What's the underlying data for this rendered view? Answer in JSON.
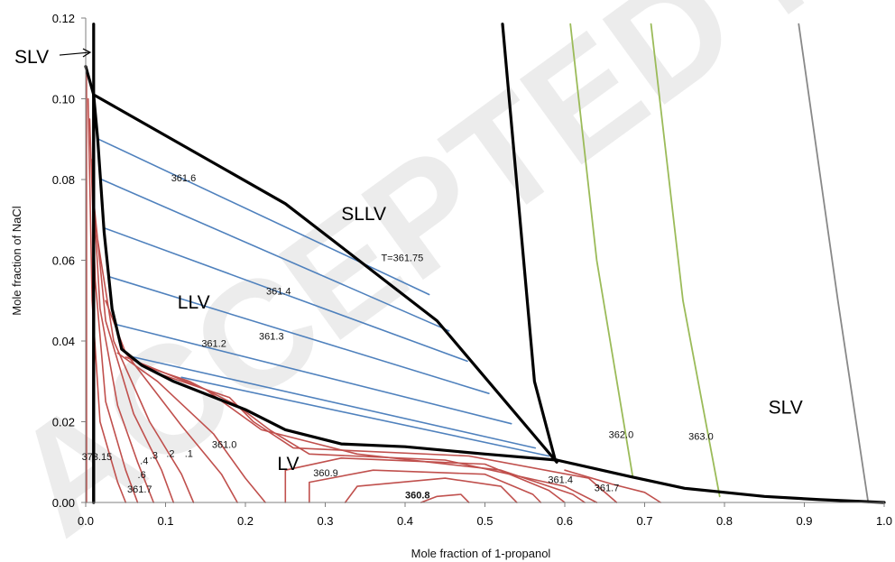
{
  "chart_data": {
    "type": "line",
    "title": "",
    "xlabel": "Mole fraction of 1-propanol",
    "ylabel": "Mole fraction of NaCl",
    "xlim": [
      0.0,
      1.0
    ],
    "ylim": [
      0.0,
      0.12
    ],
    "x_ticks": [
      "0.0",
      "0.1",
      "0.2",
      "0.3",
      "0.4",
      "0.5",
      "0.6",
      "0.7",
      "0.8",
      "0.9",
      "1.0"
    ],
    "y_ticks": [
      "0.00",
      "0.02",
      "0.04",
      "0.06",
      "0.08",
      "0.10",
      "0.12"
    ],
    "grid": false,
    "watermark": "ACCEPTED MANUSCRIPT",
    "colors": {
      "phase_boundary": "#000000",
      "lv_isotherm": "#c0504d",
      "llv_tieline": "#4f81bd",
      "slv_isotherm_green": "#9bbb59",
      "slv_isotherm_gray": "#888888"
    },
    "regions": [
      {
        "label": "SLV",
        "x": 0.855,
        "y": 0.022
      },
      {
        "label": "SLLV",
        "x": 0.32,
        "y": 0.07
      },
      {
        "label": "LLV",
        "x": 0.115,
        "y": 0.048
      },
      {
        "label": "LV",
        "x": 0.24,
        "y": 0.008
      }
    ],
    "slv_arrow_label": {
      "label": "SLV",
      "tip_x": 0.009,
      "tip_y": 0.1115
    },
    "isotherm_labels": [
      {
        "text": "373.15",
        "x": -0.005,
        "y": 0.0105,
        "style": "normal"
      },
      {
        "text": "361.7",
        "x": 0.052,
        "y": 0.0025,
        "style": "normal"
      },
      {
        "text": ".6",
        "x": 0.065,
        "y": 0.006,
        "style": "normal"
      },
      {
        "text": ".4",
        "x": 0.068,
        "y": 0.0095,
        "style": "normal"
      },
      {
        "text": ".3",
        "x": 0.08,
        "y": 0.0108,
        "style": "normal"
      },
      {
        "text": ".2",
        "x": 0.101,
        "y": 0.0113,
        "style": "normal"
      },
      {
        "text": ".1",
        "x": 0.124,
        "y": 0.0113,
        "style": "normal"
      },
      {
        "text": "361.0",
        "x": 0.158,
        "y": 0.0135,
        "style": "normal"
      },
      {
        "text": "360.9",
        "x": 0.285,
        "y": 0.0065,
        "style": "normal"
      },
      {
        "text": "360.8",
        "x": 0.4,
        "y": 0.001,
        "style": "bold"
      },
      {
        "text": "361.4",
        "x": 0.579,
        "y": 0.0048,
        "style": "normal"
      },
      {
        "text": "361.7",
        "x": 0.637,
        "y": 0.0028,
        "style": "normal"
      },
      {
        "text": "361.6",
        "x": 0.107,
        "y": 0.0795,
        "style": "normal"
      },
      {
        "text": "361.4",
        "x": 0.226,
        "y": 0.0515,
        "style": "normal"
      },
      {
        "text": "361.3",
        "x": 0.217,
        "y": 0.0403,
        "style": "normal"
      },
      {
        "text": "361.2",
        "x": 0.145,
        "y": 0.0385,
        "style": "normal"
      },
      {
        "text": "T=361.75",
        "x": 0.37,
        "y": 0.0598,
        "style": "normal"
      },
      {
        "text": "362.0",
        "x": 0.655,
        "y": 0.016,
        "style": "normal"
      },
      {
        "text": "363.0",
        "x": 0.755,
        "y": 0.0155,
        "style": "normal"
      }
    ],
    "series": [
      {
        "kind": "boundary",
        "points": [
          [
            0.01,
            0.1185
          ],
          [
            0.01,
            0.0
          ]
        ]
      },
      {
        "kind": "boundary",
        "points": [
          [
            0.0,
            0.108
          ],
          [
            0.01,
            0.101
          ],
          [
            0.01,
            0.0
          ]
        ]
      },
      {
        "kind": "boundary",
        "points": [
          [
            0.01,
            0.101
          ],
          [
            0.25,
            0.074
          ],
          [
            0.44,
            0.045
          ],
          [
            0.59,
            0.01
          ]
        ]
      },
      {
        "kind": "boundary",
        "points": [
          [
            0.01,
            0.101
          ],
          [
            0.015,
            0.09
          ],
          [
            0.023,
            0.067
          ],
          [
            0.033,
            0.048
          ],
          [
            0.045,
            0.038
          ],
          [
            0.07,
            0.034
          ],
          [
            0.11,
            0.03
          ],
          [
            0.2,
            0.023
          ],
          [
            0.25,
            0.018
          ],
          [
            0.32,
            0.0145
          ],
          [
            0.4,
            0.0138
          ],
          [
            0.5,
            0.012
          ],
          [
            0.59,
            0.0105
          ]
        ]
      },
      {
        "kind": "boundary",
        "points": [
          [
            0.522,
            0.1185
          ],
          [
            0.562,
            0.03
          ],
          [
            0.588,
            0.0105
          ]
        ]
      },
      {
        "kind": "boundary",
        "points": [
          [
            0.59,
            0.0105
          ],
          [
            0.68,
            0.0065
          ],
          [
            0.75,
            0.0035
          ],
          [
            0.85,
            0.0015
          ],
          [
            0.92,
            0.0007
          ],
          [
            1.0,
            0.0
          ]
        ]
      },
      {
        "kind": "llv",
        "points": [
          [
            0.016,
            0.09
          ],
          [
            0.43,
            0.0515
          ]
        ]
      },
      {
        "kind": "llv",
        "points": [
          [
            0.02,
            0.08
          ],
          [
            0.455,
            0.0425
          ]
        ]
      },
      {
        "kind": "llv",
        "points": [
          [
            0.023,
            0.068
          ],
          [
            0.478,
            0.035
          ]
        ]
      },
      {
        "kind": "llv",
        "points": [
          [
            0.028,
            0.056
          ],
          [
            0.505,
            0.027
          ]
        ]
      },
      {
        "kind": "llv",
        "points": [
          [
            0.04,
            0.044
          ],
          [
            0.533,
            0.0195
          ]
        ]
      },
      {
        "kind": "llv",
        "points": [
          [
            0.06,
            0.036
          ],
          [
            0.563,
            0.0135
          ]
        ]
      },
      {
        "kind": "llv",
        "points": [
          [
            0.12,
            0.031
          ],
          [
            0.58,
            0.0115
          ]
        ]
      },
      {
        "kind": "slv_green",
        "points": [
          [
            0.607,
            0.1185
          ],
          [
            0.64,
            0.06
          ],
          [
            0.685,
            0.0065
          ]
        ]
      },
      {
        "kind": "slv_green",
        "points": [
          [
            0.708,
            0.1185
          ],
          [
            0.748,
            0.05
          ],
          [
            0.794,
            0.0015
          ]
        ]
      },
      {
        "kind": "slv_gray",
        "points": [
          [
            0.893,
            0.1185
          ],
          [
            0.942,
            0.05
          ],
          [
            0.98,
            0.0
          ]
        ]
      },
      {
        "kind": "lv",
        "points": [
          [
            0.001,
            0.108
          ],
          [
            0.001,
            0.0
          ]
        ]
      },
      {
        "kind": "lv",
        "points": [
          [
            0.003,
            0.1
          ],
          [
            0.008,
            0.05
          ],
          [
            0.018,
            0.02
          ],
          [
            0.04,
            0.005
          ],
          [
            0.05,
            0.0
          ]
        ]
      },
      {
        "kind": "lv",
        "points": [
          [
            0.005,
            0.095
          ],
          [
            0.012,
            0.055
          ],
          [
            0.025,
            0.025
          ],
          [
            0.05,
            0.008
          ],
          [
            0.065,
            0.0
          ]
        ]
      },
      {
        "kind": "lv",
        "points": [
          [
            0.007,
            0.085
          ],
          [
            0.018,
            0.048
          ],
          [
            0.04,
            0.024
          ],
          [
            0.065,
            0.01
          ],
          [
            0.085,
            0.0
          ]
        ]
      },
      {
        "kind": "lv",
        "points": [
          [
            0.01,
            0.075
          ],
          [
            0.025,
            0.045
          ],
          [
            0.06,
            0.022
          ],
          [
            0.095,
            0.008
          ],
          [
            0.11,
            0.0
          ]
        ]
      },
      {
        "kind": "lv",
        "points": [
          [
            0.015,
            0.065
          ],
          [
            0.035,
            0.04
          ],
          [
            0.08,
            0.02
          ],
          [
            0.12,
            0.007
          ],
          [
            0.135,
            0.0
          ]
        ]
      },
      {
        "kind": "lv",
        "points": [
          [
            0.025,
            0.05
          ],
          [
            0.05,
            0.037
          ],
          [
            0.12,
            0.019
          ],
          [
            0.17,
            0.007
          ],
          [
            0.19,
            0.0
          ]
        ]
      },
      {
        "kind": "lv",
        "points": [
          [
            0.04,
            0.037
          ],
          [
            0.09,
            0.03
          ],
          [
            0.16,
            0.017
          ],
          [
            0.2,
            0.006
          ],
          [
            0.225,
            0.0
          ]
        ]
      },
      {
        "kind": "lv",
        "points": [
          [
            0.05,
            0.036
          ],
          [
            0.15,
            0.028
          ],
          [
            0.22,
            0.018
          ],
          [
            0.34,
            0.012
          ],
          [
            0.52,
            0.008
          ],
          [
            0.61,
            0.002
          ],
          [
            0.625,
            0.0
          ]
        ]
      },
      {
        "kind": "lv",
        "points": [
          [
            0.07,
            0.034
          ],
          [
            0.13,
            0.03
          ],
          [
            0.19,
            0.024
          ],
          [
            0.23,
            0.018
          ],
          [
            0.28,
            0.012
          ],
          [
            0.45,
            0.0105
          ],
          [
            0.6,
            0.004
          ],
          [
            0.64,
            0.0
          ]
        ]
      },
      {
        "kind": "lv",
        "points": [
          [
            0.09,
            0.032
          ],
          [
            0.18,
            0.026
          ],
          [
            0.21,
            0.02
          ],
          [
            0.26,
            0.0135
          ],
          [
            0.48,
            0.0115
          ],
          [
            0.63,
            0.006
          ],
          [
            0.665,
            0.0
          ]
        ]
      },
      {
        "kind": "lv",
        "points": [
          [
            0.25,
            0.0
          ],
          [
            0.25,
            0.008
          ],
          [
            0.32,
            0.011
          ],
          [
            0.5,
            0.0095
          ],
          [
            0.58,
            0.003
          ],
          [
            0.6,
            0.0
          ]
        ]
      },
      {
        "kind": "lv",
        "points": [
          [
            0.28,
            0.0
          ],
          [
            0.28,
            0.005
          ],
          [
            0.36,
            0.008
          ],
          [
            0.5,
            0.007
          ],
          [
            0.56,
            0.002
          ],
          [
            0.57,
            0.0
          ]
        ]
      },
      {
        "kind": "lv",
        "points": [
          [
            0.325,
            0.0
          ],
          [
            0.34,
            0.004
          ],
          [
            0.45,
            0.006
          ],
          [
            0.52,
            0.004
          ],
          [
            0.54,
            0.0
          ]
        ]
      },
      {
        "kind": "lv",
        "points": [
          [
            0.42,
            0.0
          ],
          [
            0.44,
            0.0015
          ],
          [
            0.47,
            0.002
          ],
          [
            0.48,
            0.0
          ]
        ]
      },
      {
        "kind": "lv",
        "points": [
          [
            0.6,
            0.008
          ],
          [
            0.66,
            0.0045
          ],
          [
            0.7,
            0.0025
          ],
          [
            0.72,
            0.0
          ]
        ]
      }
    ]
  }
}
